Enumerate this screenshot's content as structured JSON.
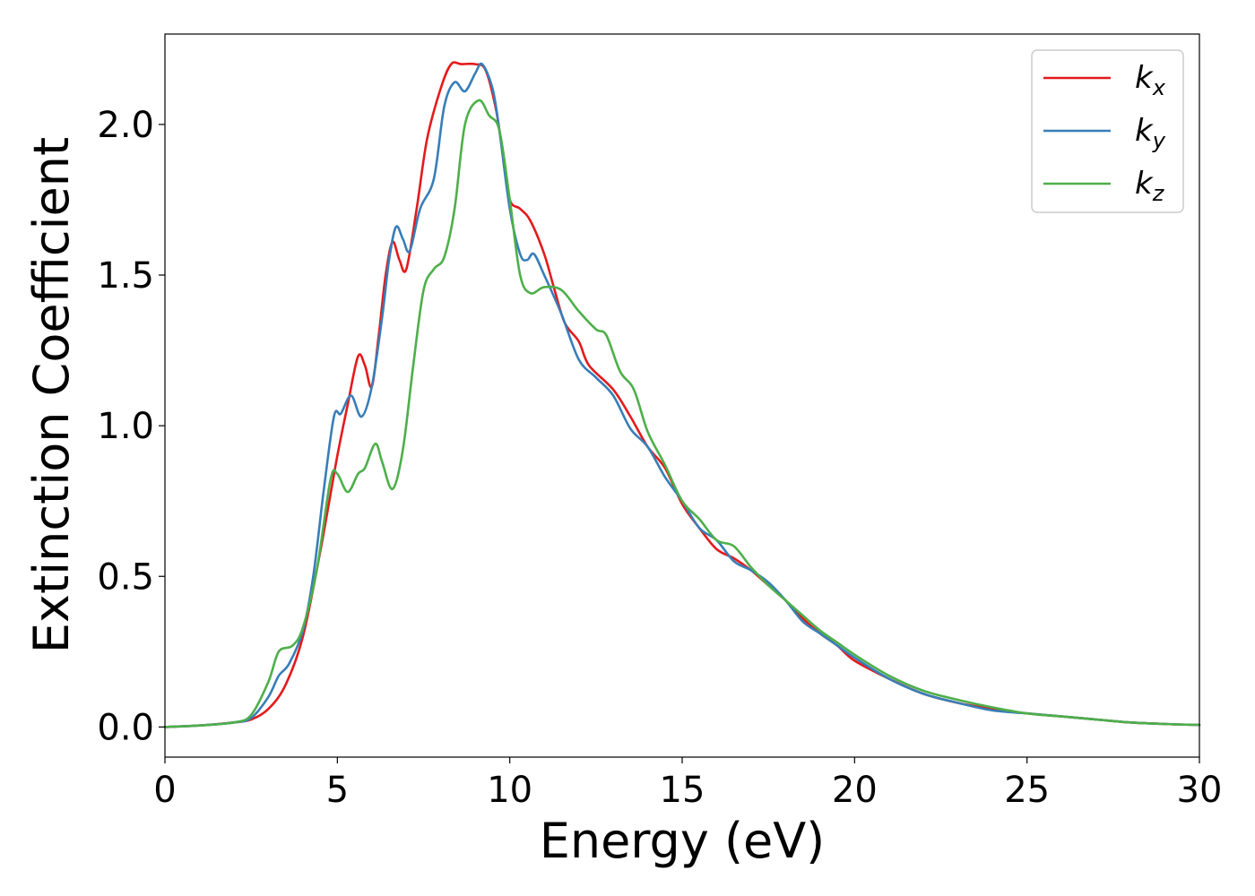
{
  "chart_data": {
    "type": "line",
    "xlabel": "Energy (eV)",
    "ylabel": "Extinction Coefficient",
    "xlim": [
      0,
      30
    ],
    "ylim": [
      -0.1,
      2.3
    ],
    "xticks": [
      0,
      5,
      10,
      15,
      20,
      25,
      30
    ],
    "xtick_labels": [
      "0",
      "5",
      "10",
      "15",
      "20",
      "25",
      "30"
    ],
    "yticks": [
      0.0,
      0.5,
      1.0,
      1.5,
      2.0
    ],
    "ytick_labels": [
      "0.0",
      "0.5",
      "1.0",
      "1.5",
      "2.0"
    ],
    "grid": false,
    "legend_position": "top-right",
    "series": [
      {
        "name": "k",
        "subscript": "x",
        "color": "#e41a1c",
        "points": [
          [
            0,
            0
          ],
          [
            1,
            0.005
          ],
          [
            2,
            0.015
          ],
          [
            2.5,
            0.025
          ],
          [
            3,
            0.06
          ],
          [
            3.5,
            0.14
          ],
          [
            4,
            0.3
          ],
          [
            4.5,
            0.58
          ],
          [
            5,
            0.9
          ],
          [
            5.3,
            1.07
          ],
          [
            5.6,
            1.23
          ],
          [
            5.8,
            1.2
          ],
          [
            6,
            1.13
          ],
          [
            6.2,
            1.3
          ],
          [
            6.4,
            1.5
          ],
          [
            6.6,
            1.61
          ],
          [
            6.8,
            1.55
          ],
          [
            7,
            1.52
          ],
          [
            7.3,
            1.72
          ],
          [
            7.6,
            1.95
          ],
          [
            8,
            2.12
          ],
          [
            8.3,
            2.2
          ],
          [
            8.6,
            2.2
          ],
          [
            9,
            2.2
          ],
          [
            9.3,
            2.18
          ],
          [
            9.6,
            2.05
          ],
          [
            9.8,
            1.9
          ],
          [
            10,
            1.75
          ],
          [
            10.3,
            1.72
          ],
          [
            10.6,
            1.68
          ],
          [
            11,
            1.57
          ],
          [
            11.3,
            1.45
          ],
          [
            11.6,
            1.34
          ],
          [
            12,
            1.28
          ],
          [
            12.3,
            1.2
          ],
          [
            13,
            1.12
          ],
          [
            13.5,
            1.03
          ],
          [
            14,
            0.93
          ],
          [
            14.5,
            0.86
          ],
          [
            15,
            0.74
          ],
          [
            15.5,
            0.66
          ],
          [
            16,
            0.59
          ],
          [
            16.5,
            0.56
          ],
          [
            17,
            0.52
          ],
          [
            17.5,
            0.47
          ],
          [
            18,
            0.42
          ],
          [
            18.5,
            0.36
          ],
          [
            19,
            0.31
          ],
          [
            19.5,
            0.27
          ],
          [
            20,
            0.22
          ],
          [
            21,
            0.16
          ],
          [
            22,
            0.11
          ],
          [
            23,
            0.08
          ],
          [
            24,
            0.06
          ],
          [
            25,
            0.045
          ],
          [
            26,
            0.035
          ],
          [
            27,
            0.025
          ],
          [
            28,
            0.015
          ],
          [
            29,
            0.01
          ],
          [
            30,
            0.007
          ]
        ]
      },
      {
        "name": "k",
        "subscript": "y",
        "color": "#377eb8",
        "points": [
          [
            0,
            0
          ],
          [
            1,
            0.005
          ],
          [
            2,
            0.015
          ],
          [
            2.5,
            0.03
          ],
          [
            3,
            0.1
          ],
          [
            3.3,
            0.17
          ],
          [
            3.6,
            0.21
          ],
          [
            4,
            0.32
          ],
          [
            4.3,
            0.5
          ],
          [
            4.6,
            0.78
          ],
          [
            4.9,
            1.03
          ],
          [
            5.1,
            1.04
          ],
          [
            5.4,
            1.1
          ],
          [
            5.7,
            1.03
          ],
          [
            6,
            1.13
          ],
          [
            6.3,
            1.36
          ],
          [
            6.5,
            1.55
          ],
          [
            6.7,
            1.66
          ],
          [
            6.9,
            1.62
          ],
          [
            7.1,
            1.58
          ],
          [
            7.4,
            1.72
          ],
          [
            7.8,
            1.82
          ],
          [
            8.1,
            2.06
          ],
          [
            8.4,
            2.14
          ],
          [
            8.7,
            2.11
          ],
          [
            9,
            2.17
          ],
          [
            9.2,
            2.2
          ],
          [
            9.5,
            2.12
          ],
          [
            9.7,
            1.98
          ],
          [
            10,
            1.72
          ],
          [
            10.3,
            1.57
          ],
          [
            10.5,
            1.55
          ],
          [
            10.7,
            1.57
          ],
          [
            11,
            1.5
          ],
          [
            11.5,
            1.37
          ],
          [
            12,
            1.22
          ],
          [
            12.5,
            1.16
          ],
          [
            13,
            1.1
          ],
          [
            13.5,
            0.99
          ],
          [
            14,
            0.93
          ],
          [
            14.5,
            0.83
          ],
          [
            15,
            0.75
          ],
          [
            15.5,
            0.66
          ],
          [
            16,
            0.62
          ],
          [
            16.5,
            0.55
          ],
          [
            17,
            0.52
          ],
          [
            17.5,
            0.48
          ],
          [
            18,
            0.42
          ],
          [
            18.5,
            0.35
          ],
          [
            19,
            0.31
          ],
          [
            19.5,
            0.27
          ],
          [
            20,
            0.23
          ],
          [
            21,
            0.16
          ],
          [
            22,
            0.11
          ],
          [
            23,
            0.08
          ],
          [
            24,
            0.055
          ],
          [
            25,
            0.045
          ],
          [
            26,
            0.035
          ],
          [
            27,
            0.025
          ],
          [
            28,
            0.015
          ],
          [
            29,
            0.01
          ],
          [
            30,
            0.007
          ]
        ]
      },
      {
        "name": "k",
        "subscript": "z",
        "color": "#4daf4a",
        "points": [
          [
            0,
            0
          ],
          [
            1,
            0.005
          ],
          [
            2,
            0.015
          ],
          [
            2.5,
            0.04
          ],
          [
            3,
            0.15
          ],
          [
            3.3,
            0.25
          ],
          [
            3.7,
            0.27
          ],
          [
            4,
            0.33
          ],
          [
            4.4,
            0.52
          ],
          [
            4.8,
            0.82
          ],
          [
            5,
            0.84
          ],
          [
            5.3,
            0.78
          ],
          [
            5.6,
            0.84
          ],
          [
            5.8,
            0.86
          ],
          [
            6.1,
            0.94
          ],
          [
            6.3,
            0.88
          ],
          [
            6.6,
            0.79
          ],
          [
            6.9,
            0.92
          ],
          [
            7.2,
            1.2
          ],
          [
            7.5,
            1.45
          ],
          [
            7.8,
            1.52
          ],
          [
            8.1,
            1.56
          ],
          [
            8.4,
            1.72
          ],
          [
            8.7,
            2.0
          ],
          [
            9.1,
            2.08
          ],
          [
            9.4,
            2.03
          ],
          [
            9.7,
            1.98
          ],
          [
            10,
            1.75
          ],
          [
            10.3,
            1.5
          ],
          [
            10.6,
            1.44
          ],
          [
            11,
            1.46
          ],
          [
            11.5,
            1.45
          ],
          [
            12,
            1.38
          ],
          [
            12.5,
            1.32
          ],
          [
            12.8,
            1.3
          ],
          [
            13.2,
            1.18
          ],
          [
            13.6,
            1.12
          ],
          [
            14,
            0.98
          ],
          [
            14.5,
            0.87
          ],
          [
            15,
            0.75
          ],
          [
            15.5,
            0.69
          ],
          [
            16,
            0.62
          ],
          [
            16.5,
            0.6
          ],
          [
            17,
            0.53
          ],
          [
            17.5,
            0.47
          ],
          [
            18,
            0.42
          ],
          [
            18.5,
            0.37
          ],
          [
            19,
            0.32
          ],
          [
            19.5,
            0.28
          ],
          [
            20,
            0.24
          ],
          [
            21,
            0.17
          ],
          [
            22,
            0.12
          ],
          [
            23,
            0.09
          ],
          [
            24,
            0.065
          ],
          [
            25,
            0.045
          ],
          [
            26,
            0.035
          ],
          [
            27,
            0.025
          ],
          [
            28,
            0.015
          ],
          [
            29,
            0.01
          ],
          [
            30,
            0.007
          ]
        ]
      }
    ]
  }
}
